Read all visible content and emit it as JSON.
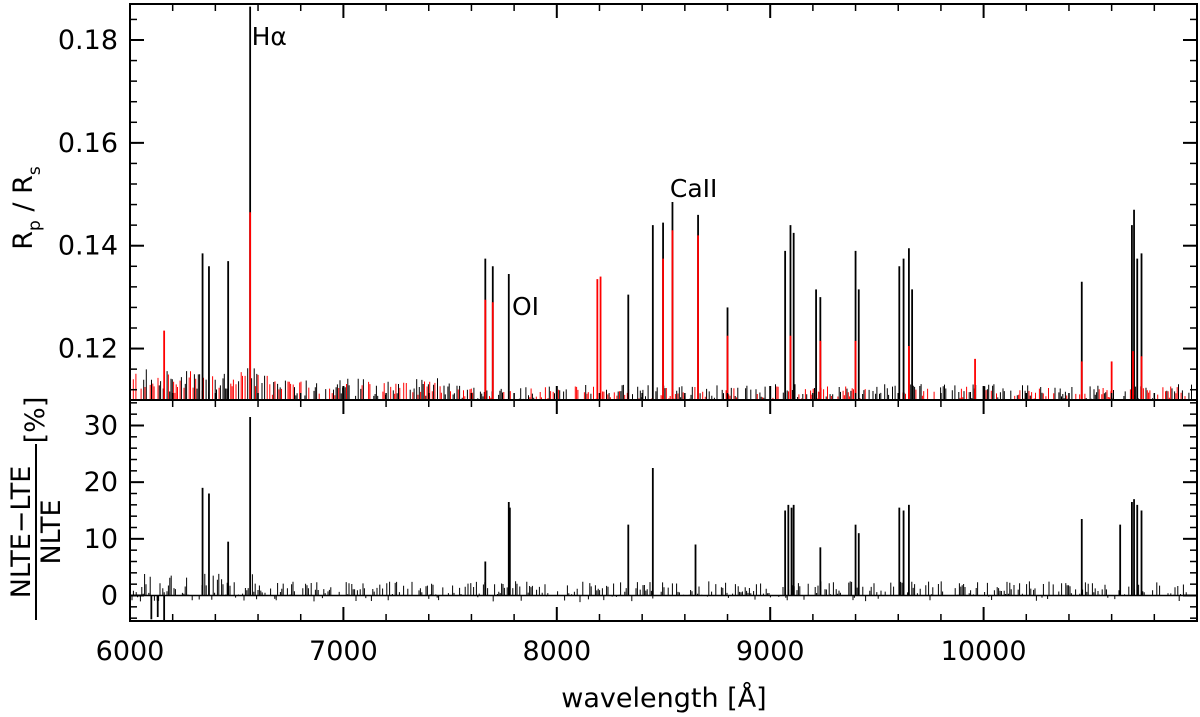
{
  "chart_data": [
    {
      "type": "line",
      "panel": "top",
      "ylabel_parts": [
        "R",
        "p",
        " / R",
        "s"
      ],
      "xlim": [
        6000,
        11000
      ],
      "ylim": [
        0.11,
        0.187
      ],
      "yticks": [
        0.12,
        0.14,
        0.16,
        0.18
      ],
      "ytick_labels": [
        "0.12",
        "0.14",
        "0.16",
        "0.18"
      ],
      "baseline": 0.11,
      "series": [
        {
          "color": "#000000",
          "x": [
            6340,
            6370,
            6460,
            6563,
            7665,
            7700,
            7775,
            8335,
            8450,
            8498,
            8542,
            8662,
            8800,
            9070,
            9095,
            9110,
            9215,
            9235,
            9400,
            9415,
            9605,
            9625,
            9650,
            9665,
            10460,
            10695,
            10705,
            10720,
            10740
          ],
          "values": [
            0.1385,
            0.136,
            0.137,
            0.1865,
            0.1375,
            0.136,
            0.1345,
            0.1305,
            0.144,
            0.1445,
            0.1485,
            0.146,
            0.128,
            0.139,
            0.144,
            0.1425,
            0.1315,
            0.13,
            0.139,
            0.1315,
            0.136,
            0.1375,
            0.1395,
            0.1315,
            0.133,
            0.144,
            0.147,
            0.1375,
            0.1385
          ]
        },
        {
          "color": "#ff0000",
          "x": [
            6160,
            6563,
            7665,
            7700,
            8190,
            8205,
            8498,
            8542,
            8662,
            8800,
            9095,
            9235,
            9400,
            9650,
            9960,
            10460,
            10600,
            10700,
            10740
          ],
          "values": [
            0.1235,
            0.1465,
            0.1295,
            0.129,
            0.1335,
            0.134,
            0.1375,
            0.143,
            0.142,
            0.1225,
            0.1225,
            0.1215,
            0.1215,
            0.1205,
            0.118,
            0.1175,
            0.1175,
            0.1195,
            0.1185
          ]
        }
      ],
      "annotations": [
        {
          "text": "Hα",
          "x": 6570,
          "y": 0.179
        },
        {
          "text": "CaII",
          "x": 8530,
          "y": 0.1495
        },
        {
          "text": "OI",
          "x": 7790,
          "y": 0.1265
        }
      ]
    },
    {
      "type": "line",
      "panel": "bottom",
      "ylabel": {
        "numerator": "NLTE−LTE",
        "denominator": "NLTE",
        "unit": "[%]"
      },
      "xlabel": "wavelength [Å]",
      "xlim": [
        6000,
        11000
      ],
      "ylim": [
        -4.5,
        34.5
      ],
      "xticks": [
        6000,
        7000,
        8000,
        9000,
        10000
      ],
      "xtick_labels": [
        "6000",
        "7000",
        "8000",
        "9000",
        "10000"
      ],
      "yticks": [
        0,
        10,
        20,
        30
      ],
      "ytick_labels": [
        "0",
        "10",
        "20",
        "30"
      ],
      "series": [
        {
          "color": "#000000",
          "x": [
            6100,
            6130,
            6160,
            6340,
            6370,
            6460,
            6563,
            7665,
            7775,
            7780,
            8335,
            8450,
            8650,
            9070,
            9085,
            9100,
            9110,
            9235,
            9400,
            9415,
            9605,
            9625,
            9650,
            10460,
            10640,
            10695,
            10705,
            10720,
            10740
          ],
          "values": [
            -4.2,
            -3.8,
            -4.5,
            19,
            18,
            9.5,
            31.5,
            6,
            16.5,
            15.5,
            12.5,
            22.5,
            9,
            15,
            16,
            15.5,
            16,
            8.5,
            12.5,
            11,
            15.5,
            15,
            16,
            13.5,
            12.5,
            16.5,
            17,
            16,
            15
          ]
        }
      ]
    }
  ]
}
